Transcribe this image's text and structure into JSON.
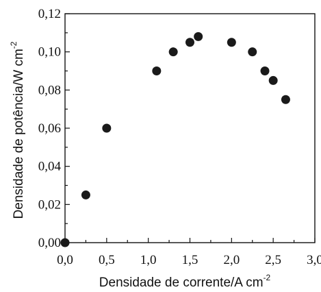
{
  "chart_data": {
    "type": "scatter",
    "title": "",
    "xlabel": "Densidade de corrente/A cm",
    "xlabel_sup": "-2",
    "ylabel": "Densidade de potência/W cm",
    "ylabel_sup": "-2",
    "xlim": [
      0,
      3.0
    ],
    "ylim": [
      0,
      0.12
    ],
    "xticks": [
      0.0,
      0.5,
      1.0,
      1.5,
      2.0,
      2.5,
      3.0
    ],
    "xtick_labels": [
      "0,0",
      "0,5",
      "1,0",
      "1,5",
      "2,0",
      "2,5",
      "3,0"
    ],
    "yticks": [
      0.0,
      0.02,
      0.04,
      0.06,
      0.08,
      0.1,
      0.12
    ],
    "ytick_labels": [
      "0,00",
      "0,02",
      "0,04",
      "0,06",
      "0,08",
      "0,10",
      "0,12"
    ],
    "grid": false,
    "marker_color": "#1a1a1a",
    "points": [
      {
        "x": 0.0,
        "y": 0.0
      },
      {
        "x": 0.25,
        "y": 0.025
      },
      {
        "x": 0.5,
        "y": 0.06
      },
      {
        "x": 1.1,
        "y": 0.09
      },
      {
        "x": 1.3,
        "y": 0.1
      },
      {
        "x": 1.5,
        "y": 0.105
      },
      {
        "x": 1.6,
        "y": 0.108
      },
      {
        "x": 2.0,
        "y": 0.105
      },
      {
        "x": 2.25,
        "y": 0.1
      },
      {
        "x": 2.4,
        "y": 0.09
      },
      {
        "x": 2.5,
        "y": 0.085
      },
      {
        "x": 2.65,
        "y": 0.075
      }
    ]
  }
}
